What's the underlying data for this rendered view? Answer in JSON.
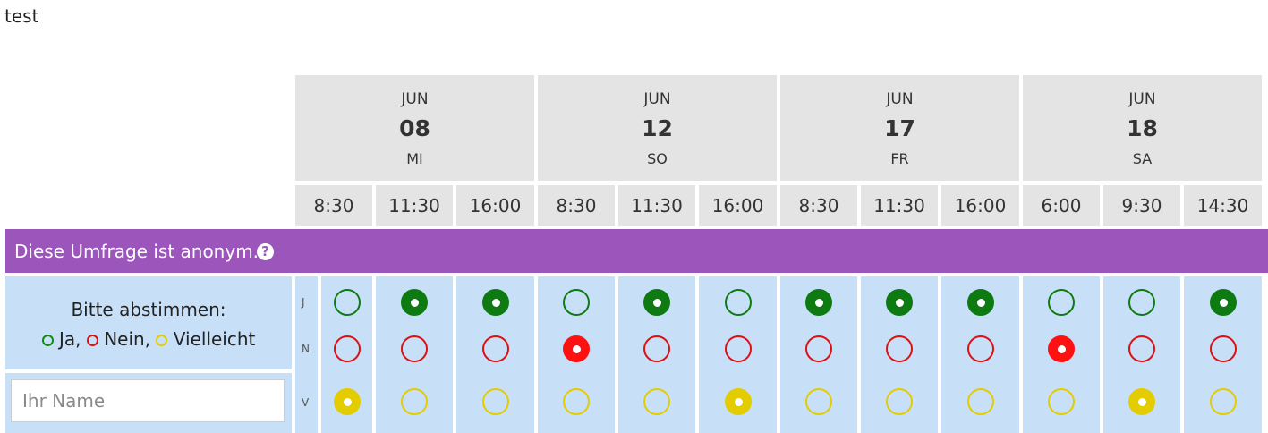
{
  "poll": {
    "title": "test"
  },
  "dates": [
    {
      "month": "JUN",
      "day": "08",
      "weekday": "MI"
    },
    {
      "month": "JUN",
      "day": "12",
      "weekday": "SO"
    },
    {
      "month": "JUN",
      "day": "17",
      "weekday": "FR"
    },
    {
      "month": "JUN",
      "day": "18",
      "weekday": "SA"
    }
  ],
  "times": [
    "8:30",
    "11:30",
    "16:00",
    "8:30",
    "11:30",
    "16:00",
    "8:30",
    "11:30",
    "16:00",
    "6:00",
    "9:30",
    "14:30"
  ],
  "anonymous_notice": {
    "text": "Diese Umfrage ist anonym.",
    "icon": "question-circle-icon",
    "icon_glyph": "?"
  },
  "instructions": {
    "line1": "Bitte abstimmen:",
    "yes": "Ja,",
    "no": "Nein,",
    "maybe": "Vielleicht"
  },
  "name_field": {
    "placeholder": "Ihr Name",
    "value": ""
  },
  "row_labels": {
    "yes": "J",
    "no": "N",
    "maybe": "V"
  },
  "votes": [
    "maybe",
    "yes",
    "yes",
    "no",
    "yes",
    "maybe",
    "yes",
    "yes",
    "yes",
    "no",
    "maybe",
    "yes"
  ],
  "colors": {
    "yes": "#0d7a12",
    "no": "#ff1111",
    "maybe": "#e3cc00",
    "header_bg": "#e4e4e4",
    "anon_bar": "#9b55bb",
    "vote_bg": "#c8e0f7"
  }
}
